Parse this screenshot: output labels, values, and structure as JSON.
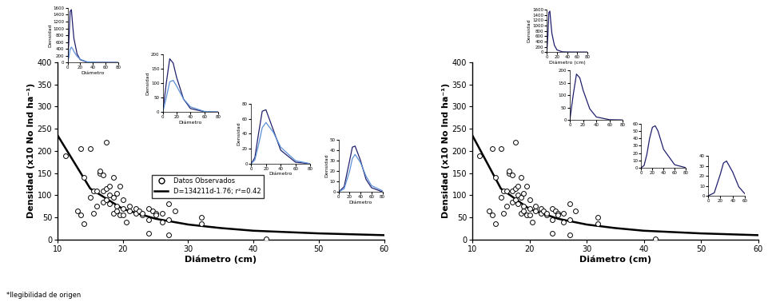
{
  "chart_data": [
    {
      "type": "scatter",
      "xlabel": "Diámetro (cm)",
      "ylabel": "Densidad (x10 No Ind ha⁻¹)",
      "xlim": [
        10,
        60
      ],
      "xticks": [
        10,
        20,
        30,
        40,
        50,
        60
      ],
      "ylim": [
        0,
        400
      ],
      "yticks": [
        0,
        50,
        100,
        150,
        200,
        250,
        300,
        350,
        400
      ],
      "legend": "center",
      "series": [
        {
          "name": "Datos Observados",
          "type": "scatter",
          "marker": "o",
          "color": "#000000",
          "x": [
            11.2,
            13,
            13.5,
            13.5,
            14,
            14,
            15,
            15,
            15.5,
            15.5,
            16,
            16,
            16.5,
            16.5,
            17,
            17,
            17,
            17.5,
            17.5,
            17.5,
            18,
            18,
            18,
            18.5,
            18.5,
            18.5,
            19,
            19,
            19,
            19.5,
            19.5,
            20,
            20,
            20,
            20.5,
            21,
            21,
            22,
            22,
            22.5,
            23,
            23,
            24,
            24,
            24,
            24.5,
            25,
            25,
            26,
            26,
            27,
            27,
            27,
            28,
            32,
            32,
            42
          ],
          "values": [
            188,
            65,
            205,
            55,
            35,
            140,
            205,
            95,
            60,
            110,
            110,
            75,
            150,
            155,
            145,
            110,
            85,
            220,
            115,
            90,
            100,
            120,
            80,
            95,
            60,
            140,
            105,
            75,
            65,
            120,
            55,
            90,
            70,
            55,
            40,
            65,
            75,
            70,
            60,
            65,
            55,
            60,
            70,
            45,
            15,
            65,
            60,
            55,
            60,
            40,
            80,
            45,
            10,
            65,
            50,
            35,
            2
          ]
        },
        {
          "name": "D=134211d-1.76; r²=0.42",
          "type": "line",
          "line_style": "solid",
          "color": "#000000",
          "x": [
            10,
            15,
            20,
            25,
            30,
            35,
            40,
            45,
            50,
            55,
            60
          ],
          "values": [
            235,
            115,
            69,
            47,
            34,
            26,
            20,
            17,
            14,
            12,
            10
          ]
        }
      ]
    },
    {
      "type": "line",
      "xlabel": "Diámetro",
      "ylabel": "Densidad",
      "xlim": [
        0,
        80
      ],
      "xticks": [
        0,
        20,
        40,
        60,
        80
      ],
      "ylim": [
        0,
        1600
      ],
      "yticks": [
        0,
        200,
        400,
        600,
        800,
        1000,
        1200,
        1400,
        1600
      ],
      "series": [
        {
          "color": "#1f1f6e",
          "x": [
            0,
            2,
            4,
            6,
            8,
            10,
            15,
            20,
            30,
            40,
            60,
            80
          ],
          "values": [
            0,
            600,
            1500,
            1550,
            1100,
            700,
            250,
            80,
            10,
            2,
            0,
            0
          ]
        },
        {
          "color": "#5b8fd6",
          "x": [
            0,
            2,
            4,
            6,
            8,
            10,
            15,
            20,
            30,
            40,
            60,
            80
          ],
          "values": [
            0,
            150,
            380,
            450,
            400,
            320,
            180,
            90,
            20,
            5,
            0,
            0
          ]
        }
      ]
    },
    {
      "type": "line",
      "xlabel": "Diámetro",
      "ylabel": "Densidad",
      "xlim": [
        0,
        80
      ],
      "xticks": [
        0,
        20,
        40,
        60,
        80
      ],
      "ylim": [
        0,
        200
      ],
      "yticks": [
        0,
        50,
        100,
        150,
        200
      ],
      "series": [
        {
          "color": "#1f1f6e",
          "x": [
            0,
            5,
            10,
            15,
            20,
            30,
            40,
            60,
            80
          ],
          "values": [
            0,
            100,
            185,
            170,
            120,
            45,
            12,
            1,
            0
          ]
        },
        {
          "color": "#5b8fd6",
          "x": [
            0,
            5,
            10,
            15,
            20,
            30,
            40,
            60,
            80
          ],
          "values": [
            0,
            50,
            105,
            110,
            90,
            45,
            18,
            2,
            0
          ]
        }
      ]
    },
    {
      "type": "line",
      "xlabel": "Diámetro",
      "ylabel": "Densidad",
      "xlim": [
        0,
        80
      ],
      "xticks": [
        0,
        20,
        40,
        60,
        80
      ],
      "ylim": [
        0,
        80
      ],
      "yticks": [
        0,
        20,
        40,
        60,
        80
      ],
      "series": [
        {
          "color": "#1f1f6e",
          "x": [
            0,
            5,
            10,
            15,
            20,
            30,
            40,
            60,
            80
          ],
          "values": [
            0,
            8,
            40,
            70,
            72,
            45,
            18,
            2,
            0
          ]
        },
        {
          "color": "#5b8fd6",
          "x": [
            0,
            5,
            10,
            15,
            20,
            30,
            40,
            60,
            80
          ],
          "values": [
            0,
            5,
            25,
            48,
            55,
            42,
            22,
            4,
            0
          ]
        }
      ]
    },
    {
      "type": "line",
      "xlabel": "Diámetro",
      "ylabel": "Densidad",
      "xlim": [
        0,
        80
      ],
      "xticks": [
        0,
        20,
        40,
        60,
        80
      ],
      "ylim": [
        0,
        50
      ],
      "yticks": [
        0,
        10,
        20,
        30,
        40,
        50
      ],
      "series": [
        {
          "color": "#1f1f6e",
          "x": [
            0,
            10,
            20,
            25,
            30,
            40,
            50,
            60,
            80
          ],
          "values": [
            0,
            5,
            30,
            43,
            44,
            30,
            12,
            4,
            0
          ]
        },
        {
          "color": "#5b8fd6",
          "x": [
            0,
            10,
            20,
            25,
            30,
            40,
            50,
            60,
            80
          ],
          "values": [
            0,
            3,
            20,
            32,
            36,
            28,
            15,
            6,
            1
          ]
        }
      ]
    },
    {
      "type": "scatter",
      "xlabel": "Diámetro (cm)",
      "ylabel": "Densidad (x10 No Ind ha⁻¹)",
      "xlim": [
        10,
        60
      ],
      "xticks": [
        10,
        20,
        30,
        40,
        50,
        60
      ],
      "ylim": [
        0,
        400
      ],
      "yticks": [
        0,
        50,
        100,
        150,
        200,
        250,
        300,
        350,
        400
      ],
      "series": [
        {
          "type": "scatter",
          "marker": "o",
          "color": "#000000",
          "x": [
            11.2,
            13,
            13.5,
            13.5,
            14,
            14,
            15,
            15,
            15.5,
            15.5,
            16,
            16,
            16.5,
            16.5,
            17,
            17,
            17,
            17.5,
            17.5,
            17.5,
            18,
            18,
            18,
            18.5,
            18.5,
            18.5,
            19,
            19,
            19,
            19.5,
            19.5,
            20,
            20,
            20,
            20.5,
            21,
            21,
            22,
            22,
            22.5,
            23,
            23,
            24,
            24,
            24,
            24.5,
            25,
            25,
            26,
            26,
            27,
            27,
            27,
            28,
            32,
            32,
            42
          ],
          "values": [
            188,
            65,
            205,
            55,
            35,
            140,
            205,
            95,
            60,
            110,
            110,
            75,
            150,
            155,
            145,
            110,
            85,
            220,
            115,
            90,
            100,
            120,
            80,
            95,
            60,
            140,
            105,
            75,
            65,
            120,
            55,
            90,
            70,
            55,
            40,
            65,
            75,
            70,
            60,
            65,
            55,
            60,
            70,
            45,
            15,
            65,
            60,
            55,
            60,
            40,
            80,
            45,
            10,
            65,
            50,
            35,
            2
          ]
        },
        {
          "type": "line",
          "line_style": "solid",
          "color": "#000000",
          "x": [
            10,
            15,
            20,
            25,
            30,
            35,
            40,
            45,
            50,
            55,
            60
          ],
          "values": [
            235,
            115,
            69,
            47,
            34,
            26,
            20,
            17,
            14,
            12,
            10
          ]
        }
      ]
    },
    {
      "type": "line",
      "xlabel": "Diámetro (cm)",
      "ylabel": "Densidad",
      "xlim": [
        0,
        80
      ],
      "xticks": [
        0,
        20,
        40,
        60,
        80
      ],
      "ylim": [
        0,
        1600
      ],
      "yticks": [
        0,
        200,
        400,
        600,
        800,
        1000,
        1200,
        1400,
        1600
      ],
      "series": [
        {
          "color": "#1f1f6e",
          "x": [
            0,
            2,
            4,
            6,
            8,
            10,
            15,
            20,
            30,
            40,
            60,
            80
          ],
          "values": [
            0,
            600,
            1500,
            1550,
            1100,
            700,
            250,
            80,
            10,
            2,
            0,
            0
          ]
        }
      ]
    },
    {
      "type": "line",
      "xlim": [
        0,
        80
      ],
      "xticks": [
        0,
        20,
        40,
        60,
        80
      ],
      "ylim": [
        0,
        200
      ],
      "yticks": [
        0,
        50,
        100,
        150,
        200
      ],
      "series": [
        {
          "color": "#1f1f6e",
          "x": [
            0,
            5,
            10,
            15,
            20,
            30,
            40,
            60,
            80
          ],
          "values": [
            0,
            100,
            185,
            170,
            120,
            45,
            12,
            1,
            0
          ]
        }
      ]
    },
    {
      "type": "line",
      "xlim": [
        0,
        80
      ],
      "xticks": [
        0,
        20,
        40,
        60,
        80
      ],
      "ylim": [
        0,
        60
      ],
      "yticks": [
        0,
        10,
        20,
        30,
        40,
        50,
        60
      ],
      "series": [
        {
          "color": "#1f1f6e",
          "x": [
            0,
            5,
            10,
            15,
            20,
            25,
            30,
            40,
            60,
            80
          ],
          "values": [
            0,
            3,
            18,
            40,
            55,
            57,
            50,
            25,
            4,
            0
          ]
        }
      ]
    },
    {
      "type": "line",
      "xlim": [
        0,
        60
      ],
      "xticks": [
        0,
        20,
        40,
        60
      ],
      "ylim": [
        0,
        40
      ],
      "yticks": [
        0,
        10,
        20,
        30,
        40
      ],
      "series": [
        {
          "color": "#1f1f6e",
          "x": [
            0,
            10,
            20,
            25,
            30,
            40,
            50,
            60
          ],
          "values": [
            0,
            3,
            22,
            33,
            35,
            24,
            9,
            2
          ]
        }
      ]
    }
  ],
  "footnote": "*llegibilidad de origen"
}
